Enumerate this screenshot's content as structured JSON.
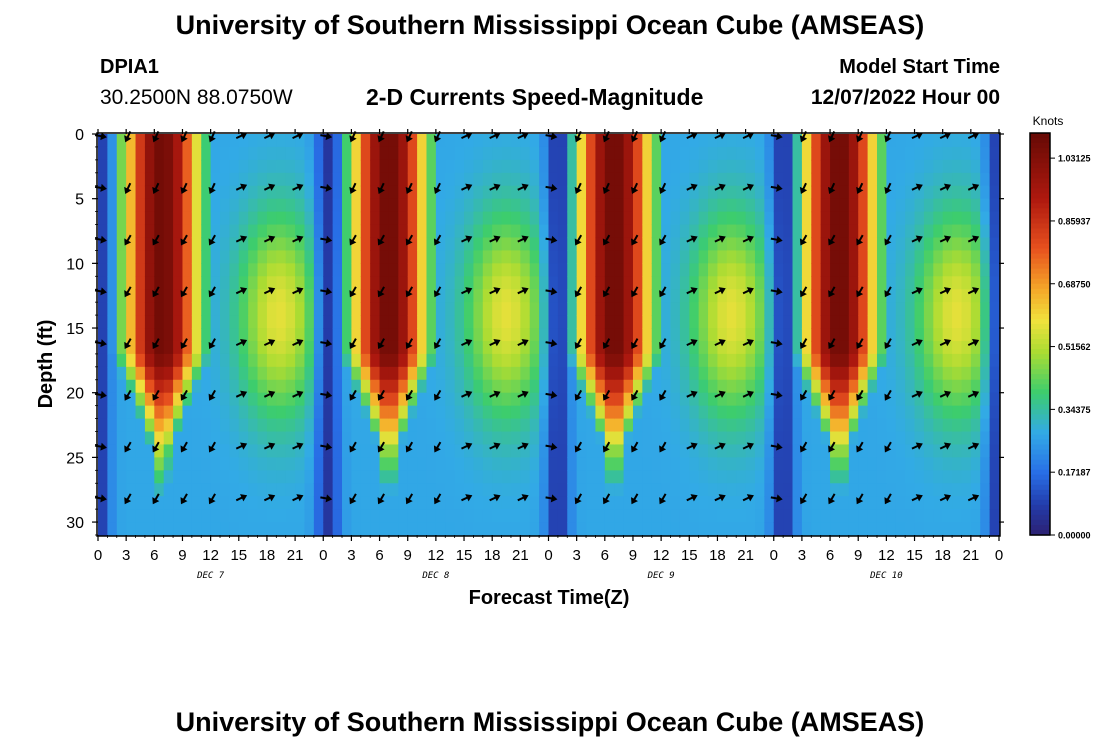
{
  "header": {
    "title": "University of Southern Mississippi Ocean Cube (AMSEAS)",
    "station": "DPIA1",
    "coordinates": "30.2500N  88.0750W",
    "subtitle": "2-D Currents Speed-Magnitude",
    "model_start_label": "Model Start Time",
    "model_start_date": "12/07/2022 Hour 00"
  },
  "footer": {
    "title": "University of Southern Mississippi Ocean Cube (AMSEAS)"
  },
  "chart_data": {
    "type": "heatmap",
    "title": "2-D Currents Speed-Magnitude",
    "xlabel": "Forecast Time(Z)",
    "ylabel": "Depth (ft)",
    "xlim": [
      0,
      96
    ],
    "ylim": [
      31,
      0
    ],
    "x_ticks": [
      0,
      3,
      6,
      9,
      12,
      15,
      18,
      21,
      24,
      27,
      30,
      33,
      36,
      39,
      42,
      45,
      48,
      51,
      54,
      57,
      60,
      63,
      66,
      69,
      72,
      75,
      78,
      81,
      84,
      87,
      90,
      93,
      96
    ],
    "x_tick_labels": [
      "0",
      "3",
      "6",
      "9",
      "12",
      "15",
      "18",
      "21",
      "0",
      "3",
      "6",
      "9",
      "12",
      "15",
      "18",
      "21",
      "0",
      "3",
      "6",
      "9",
      "12",
      "15",
      "18",
      "21",
      "0",
      "3",
      "6",
      "9",
      "12",
      "15",
      "18",
      "21",
      "0"
    ],
    "y_ticks": [
      0,
      5,
      10,
      15,
      20,
      25,
      30
    ],
    "y_tick_labels": [
      "0",
      "5",
      "10",
      "15",
      "20",
      "25",
      "30"
    ],
    "day_labels": [
      {
        "hour": 12,
        "label": "DEC 7"
      },
      {
        "hour": 36,
        "label": "DEC 8"
      },
      {
        "hour": 60,
        "label": "DEC 9"
      },
      {
        "hour": 84,
        "label": "DEC 10"
      }
    ],
    "colorbar": {
      "unit_label": "Knots",
      "range": [
        0.0,
        1.1
      ],
      "tick_values": [
        1.03125,
        0.85937,
        0.6875,
        0.51562,
        0.34375,
        0.17187,
        0.0
      ],
      "tick_labels": [
        "1.03125",
        "0.85937",
        "0.68750",
        "0.51562",
        "0.34375",
        "0.17187",
        "0.00000"
      ]
    },
    "speed_model": {
      "peak_hours": [
        6.8,
        31,
        55,
        79
      ],
      "minimum_hours": [
        0,
        24.5,
        49,
        73,
        96
      ]
    },
    "vector_rows_depth_ft": [
      0,
      4,
      8,
      12,
      16,
      20,
      24,
      28
    ],
    "vector_columns_hours": [
      0,
      3,
      6,
      9,
      12,
      15,
      18,
      21,
      24,
      27,
      30,
      33,
      36,
      39,
      42,
      45,
      48,
      51,
      54,
      57,
      60,
      63,
      66,
      69,
      72,
      75,
      78,
      81,
      84,
      87,
      90,
      93
    ]
  }
}
